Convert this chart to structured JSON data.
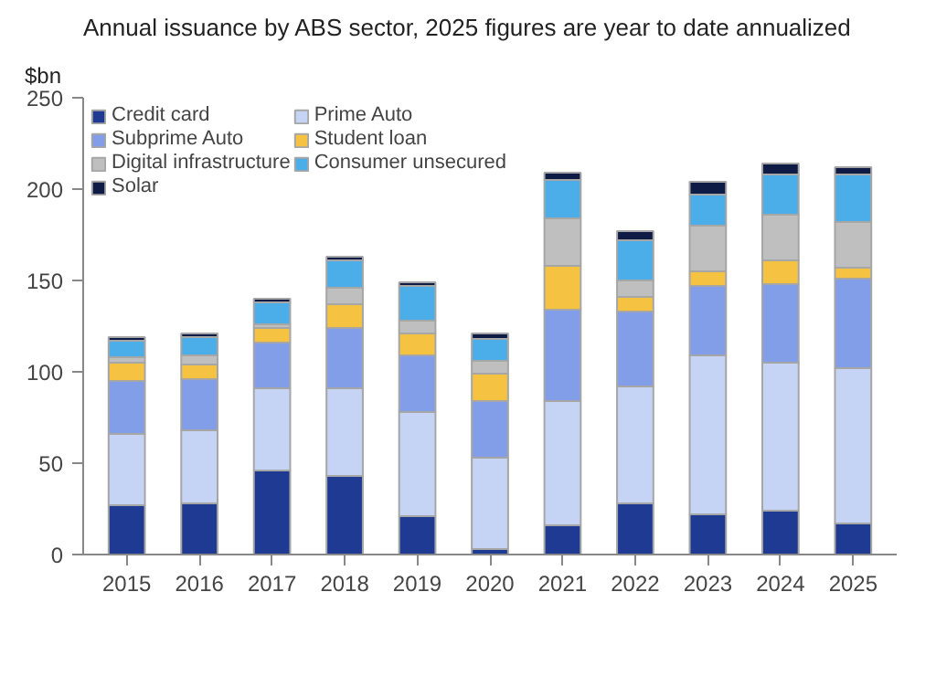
{
  "chart_data": {
    "type": "bar",
    "stacked": true,
    "title": "Annual issuance by ABS sector, 2025 figures are year to date annualized",
    "ylabel": "$bn",
    "categories": [
      "2015",
      "2016",
      "2017",
      "2018",
      "2019",
      "2020",
      "2021",
      "2022",
      "2023",
      "2024",
      "2025"
    ],
    "series": [
      {
        "name": "Credit card",
        "color": "#1f3a93",
        "values": [
          27,
          28,
          46,
          43,
          21,
          3,
          16,
          28,
          22,
          24,
          17
        ]
      },
      {
        "name": "Prime Auto",
        "color": "#c5d3f5",
        "values": [
          39,
          40,
          45,
          48,
          57,
          50,
          68,
          64,
          87,
          81,
          85
        ]
      },
      {
        "name": "Subprime Auto",
        "color": "#839ee8",
        "values": [
          29,
          28,
          25,
          33,
          31,
          31,
          50,
          41,
          38,
          43,
          49
        ]
      },
      {
        "name": "Student loan",
        "color": "#f5c242",
        "values": [
          10,
          8,
          8,
          13,
          12,
          15,
          24,
          8,
          8,
          13,
          6
        ]
      },
      {
        "name": "Digital infrastructure",
        "color": "#bfbfbf",
        "values": [
          3,
          5,
          2,
          9,
          7,
          7,
          26,
          9,
          25,
          25,
          25
        ]
      },
      {
        "name": "Consumer unsecured",
        "color": "#4baee8",
        "values": [
          9,
          10,
          12,
          15,
          19,
          12,
          21,
          22,
          17,
          22,
          26
        ]
      },
      {
        "name": "Solar",
        "color": "#0d1b45",
        "values": [
          2,
          2,
          2,
          2,
          2,
          3,
          4,
          5,
          7,
          6,
          4
        ]
      }
    ],
    "ylim": [
      0,
      250
    ],
    "yticks": [
      0,
      50,
      100,
      150,
      200,
      250
    ],
    "grid": false,
    "legend": "top"
  }
}
